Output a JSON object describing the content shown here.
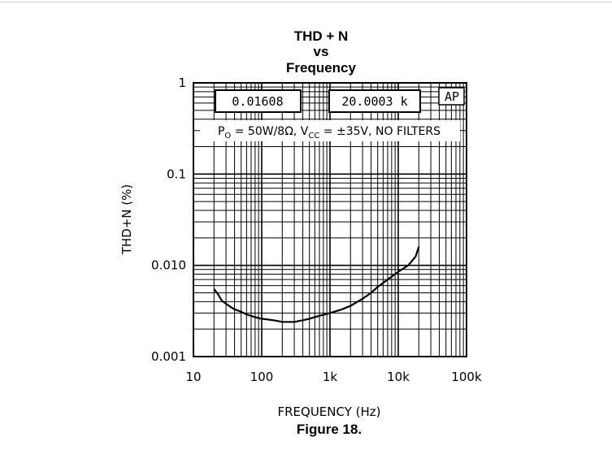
{
  "chart_data": {
    "type": "line",
    "title_lines": [
      "THD + N",
      "vs",
      "Frequency"
    ],
    "xlabel": "FREQUENCY (Hz)",
    "ylabel": "THD+N (%)",
    "x_scale": "log",
    "y_scale": "log",
    "xlim": [
      10,
      100000
    ],
    "ylim": [
      0.001,
      1
    ],
    "x_ticks": [
      {
        "value": 10,
        "label": "10"
      },
      {
        "value": 100,
        "label": "100"
      },
      {
        "value": 1000,
        "label": "1k"
      },
      {
        "value": 10000,
        "label": "10k"
      },
      {
        "value": 100000,
        "label": "100k"
      }
    ],
    "y_ticks": [
      {
        "value": 1,
        "label": "1"
      },
      {
        "value": 0.1,
        "label": "0.1"
      },
      {
        "value": 0.01,
        "label": "0.010"
      },
      {
        "value": 0.001,
        "label": "0.001"
      }
    ],
    "grid": true,
    "series": [
      {
        "x": [
          20,
          23,
          26,
          30,
          35,
          40,
          50,
          60,
          80,
          100,
          150,
          200,
          250,
          300,
          400,
          500,
          700,
          1000,
          1500,
          2000,
          3000,
          4000,
          5000,
          7000,
          10000,
          14000,
          18000,
          20000
        ],
        "y": [
          0.0055,
          0.0048,
          0.0041,
          0.0038,
          0.0035,
          0.0033,
          0.0031,
          0.0029,
          0.0027,
          0.0026,
          0.0025,
          0.0024,
          0.0024,
          0.0024,
          0.0025,
          0.0026,
          0.0028,
          0.003,
          0.0033,
          0.0036,
          0.0043,
          0.005,
          0.0058,
          0.007,
          0.0085,
          0.01,
          0.0125,
          0.016
        ]
      }
    ],
    "annotations": {
      "readout_1": "0.01608",
      "readout_2": "20.0003 k",
      "ap_logo": "AP",
      "conditions": "P_O = 50W/8Ω, V_CC = ±35V, NO FILTERS"
    }
  },
  "caption": "Figure 18."
}
